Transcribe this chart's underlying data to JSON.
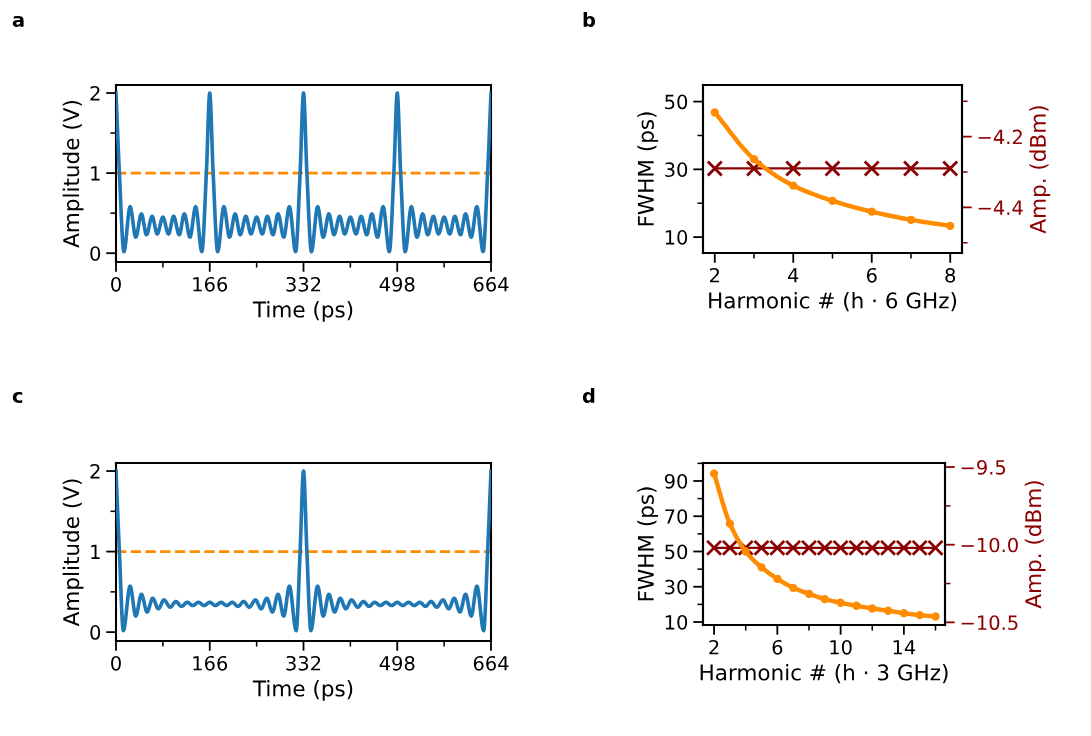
{
  "chart_data": [
    {
      "type": "line",
      "title": "a",
      "xlabel": "Time (ps)",
      "ylabel": "Amplitude (V)",
      "xlim": [
        0,
        664
      ],
      "ylim": [
        -0.11,
        2.1
      ],
      "xticks": [
        0,
        {
          "value": 83,
          "label": null
        },
        166,
        {
          "value": 249,
          "label": null
        },
        332,
        {
          "value": 415,
          "label": null
        },
        498,
        {
          "value": 581,
          "label": null
        },
        664
      ],
      "yticks": [
        0,
        {
          "value": 0.5,
          "label": null
        },
        1,
        {
          "value": 1.5,
          "label": null
        },
        2
      ],
      "x": [
        0,
        6,
        14,
        25,
        35,
        45,
        54,
        64,
        73,
        83,
        93,
        102,
        112,
        121,
        131,
        141,
        152,
        160,
        166,
        172,
        180,
        191,
        201,
        211,
        220,
        230,
        239,
        249,
        259,
        268,
        278,
        287,
        297,
        307,
        318,
        326,
        332,
        338,
        346,
        357,
        367,
        377,
        386,
        396,
        405,
        415,
        425,
        434,
        444,
        453,
        463,
        473,
        484,
        492,
        498,
        504,
        512,
        523,
        533,
        543,
        552,
        562,
        571,
        581,
        591,
        600,
        610,
        619,
        629,
        639,
        650,
        658,
        664
      ],
      "series": [
        {
          "color": "#1f77b4",
          "values": [
            2,
            1,
            0.02,
            0.58,
            0.2,
            0.49,
            0.23,
            0.46,
            0.24,
            0.45,
            0.24,
            0.46,
            0.23,
            0.49,
            0.2,
            0.58,
            0.02,
            1,
            2,
            1,
            0.02,
            0.58,
            0.2,
            0.49,
            0.23,
            0.46,
            0.24,
            0.45,
            0.24,
            0.46,
            0.23,
            0.49,
            0.2,
            0.58,
            0.02,
            1,
            2,
            1,
            0.02,
            0.58,
            0.2,
            0.49,
            0.23,
            0.46,
            0.24,
            0.45,
            0.24,
            0.46,
            0.23,
            0.49,
            0.2,
            0.58,
            0.02,
            1,
            2,
            1,
            0.02,
            0.58,
            0.2,
            0.49,
            0.23,
            0.46,
            0.24,
            0.45,
            0.24,
            0.46,
            0.23,
            0.49,
            0.2,
            0.58,
            0.02,
            1,
            2
          ]
        }
      ],
      "ref_lines": [
        {
          "axis": "y",
          "value": 1,
          "color": "#ff8c00",
          "line_style": "dashed"
        }
      ]
    },
    {
      "type": "line",
      "title": "b",
      "xlabel": "Harmonic # (h · 6 GHz)",
      "ylabel": "FWHM (ps)",
      "y2label": "Amp. (dBm)",
      "xlim": [
        1.7,
        8.3
      ],
      "ylim": [
        5.3,
        54.9
      ],
      "y2lim": [
        -4.529,
        -4.054
      ],
      "xticks": [
        2,
        {
          "value": 3,
          "label": null
        },
        4,
        {
          "value": 5,
          "label": null
        },
        6,
        {
          "value": 7,
          "label": null
        },
        8
      ],
      "yticks": [
        10,
        {
          "value": 20,
          "label": null
        },
        30,
        {
          "value": 40,
          "label": null
        },
        50
      ],
      "y2ticks": [
        {
          "value": -4.1,
          "label": null
        },
        {
          "value": -4.2,
          "label": "−4.2"
        },
        {
          "value": -4.3,
          "label": null
        },
        {
          "value": -4.4,
          "label": "−4.4"
        },
        {
          "value": -4.5,
          "label": null
        }
      ],
      "x": [
        2,
        3,
        4,
        5,
        6,
        7,
        8
      ],
      "series": [
        {
          "color": "#ff8c00",
          "marker": "circle",
          "values": [
            46.8,
            33,
            25.2,
            20.7,
            17.5,
            15.1,
            13.3
          ]
        },
        {
          "color": "#8b0000",
          "marker": "cross",
          "axis": "y2",
          "values": [
            -4.29,
            -4.29,
            -4.29,
            -4.29,
            -4.29,
            -4.29,
            -4.29
          ]
        }
      ]
    },
    {
      "type": "line",
      "title": "c",
      "xlabel": "Time (ps)",
      "ylabel": "Amplitude (V)",
      "xlim": [
        0,
        664
      ],
      "ylim": [
        -0.11,
        2.1
      ],
      "xticks": [
        0,
        {
          "value": 83,
          "label": null
        },
        166,
        {
          "value": 249,
          "label": null
        },
        332,
        {
          "value": 415,
          "label": null
        },
        498,
        {
          "value": 581,
          "label": null
        },
        664
      ],
      "yticks": [
        0,
        {
          "value": 0.5,
          "label": null
        },
        1,
        {
          "value": 1.5,
          "label": null
        },
        2
      ],
      "x": [
        0,
        6,
        13,
        25,
        35,
        45,
        55,
        65,
        75,
        85,
        96,
        106,
        116,
        126,
        136,
        146,
        156,
        166,
        176,
        186,
        196,
        206,
        216,
        226,
        236,
        247,
        257,
        267,
        277,
        287,
        297,
        307,
        319,
        326,
        332,
        338,
        345,
        357,
        367,
        377,
        387,
        397,
        407,
        417,
        428,
        438,
        448,
        458,
        468,
        478,
        488,
        498,
        508,
        518,
        528,
        538,
        548,
        558,
        568,
        579,
        589,
        599,
        609,
        619,
        629,
        639,
        651,
        658,
        664
      ],
      "series": [
        {
          "color": "#1f77b4",
          "values": [
            2,
            1,
            0.02,
            0.57,
            0.2,
            0.47,
            0.25,
            0.42,
            0.29,
            0.4,
            0.31,
            0.38,
            0.32,
            0.37,
            0.33,
            0.37,
            0.33,
            0.37,
            0.33,
            0.37,
            0.33,
            0.37,
            0.32,
            0.38,
            0.31,
            0.4,
            0.29,
            0.42,
            0.25,
            0.47,
            0.2,
            0.57,
            0.02,
            1,
            2,
            1,
            0.02,
            0.57,
            0.2,
            0.47,
            0.25,
            0.42,
            0.29,
            0.4,
            0.31,
            0.38,
            0.32,
            0.37,
            0.33,
            0.37,
            0.33,
            0.37,
            0.33,
            0.37,
            0.33,
            0.37,
            0.32,
            0.38,
            0.31,
            0.4,
            0.29,
            0.42,
            0.25,
            0.47,
            0.2,
            0.57,
            0.02,
            1,
            2
          ]
        }
      ],
      "ref_lines": [
        {
          "axis": "y",
          "value": 1,
          "color": "#ff8c00",
          "line_style": "dashed"
        }
      ]
    },
    {
      "type": "line",
      "title": "d",
      "xlabel": "Harmonic # (h · 3 GHz)",
      "ylabel": "FWHM (ps)",
      "y2label": "Amp. (dBm)",
      "xlim": [
        1.3,
        16.6
      ],
      "ylim": [
        8.3,
        100.2
      ],
      "y2lim": [
        -10.517,
        -9.474
      ],
      "xticks": [
        2,
        {
          "value": 4,
          "label": null
        },
        6,
        {
          "value": 8,
          "label": null
        },
        10,
        {
          "value": 12,
          "label": null
        },
        14,
        {
          "value": 16,
          "label": null
        }
      ],
      "yticks": [
        10,
        {
          "value": 20,
          "label": null
        },
        30,
        {
          "value": 40,
          "label": null
        },
        50,
        {
          "value": 60,
          "label": null
        },
        70,
        {
          "value": 80,
          "label": null
        },
        90,
        {
          "value": 100,
          "label": null
        }
      ],
      "y2ticks": [
        {
          "value": -9.5,
          "label": "−9.5"
        },
        {
          "value": -9.75,
          "label": null
        },
        {
          "value": -10.0,
          "label": "−10.0"
        },
        {
          "value": -10.25,
          "label": null
        },
        {
          "value": -10.5,
          "label": "−10.5"
        }
      ],
      "x": [
        2,
        3,
        4,
        5,
        6,
        7,
        8,
        9,
        10,
        11,
        12,
        13,
        14,
        15,
        16
      ],
      "series": [
        {
          "color": "#ff8c00",
          "marker": "circle",
          "values": [
            94.2,
            65.8,
            50,
            41,
            34.5,
            29.4,
            26,
            23,
            20.9,
            19.2,
            17.7,
            16.4,
            15,
            13.9,
            13.1
          ]
        },
        {
          "color": "#8b0000",
          "marker": "cross",
          "axis": "y2",
          "values": [
            -10.02,
            -10.02,
            -10.02,
            -10.02,
            -10.02,
            -10.02,
            -10.02,
            -10.02,
            -10.02,
            -10.02,
            -10.02,
            -10.02,
            -10.02,
            -10.02,
            -10.02
          ]
        }
      ]
    }
  ]
}
